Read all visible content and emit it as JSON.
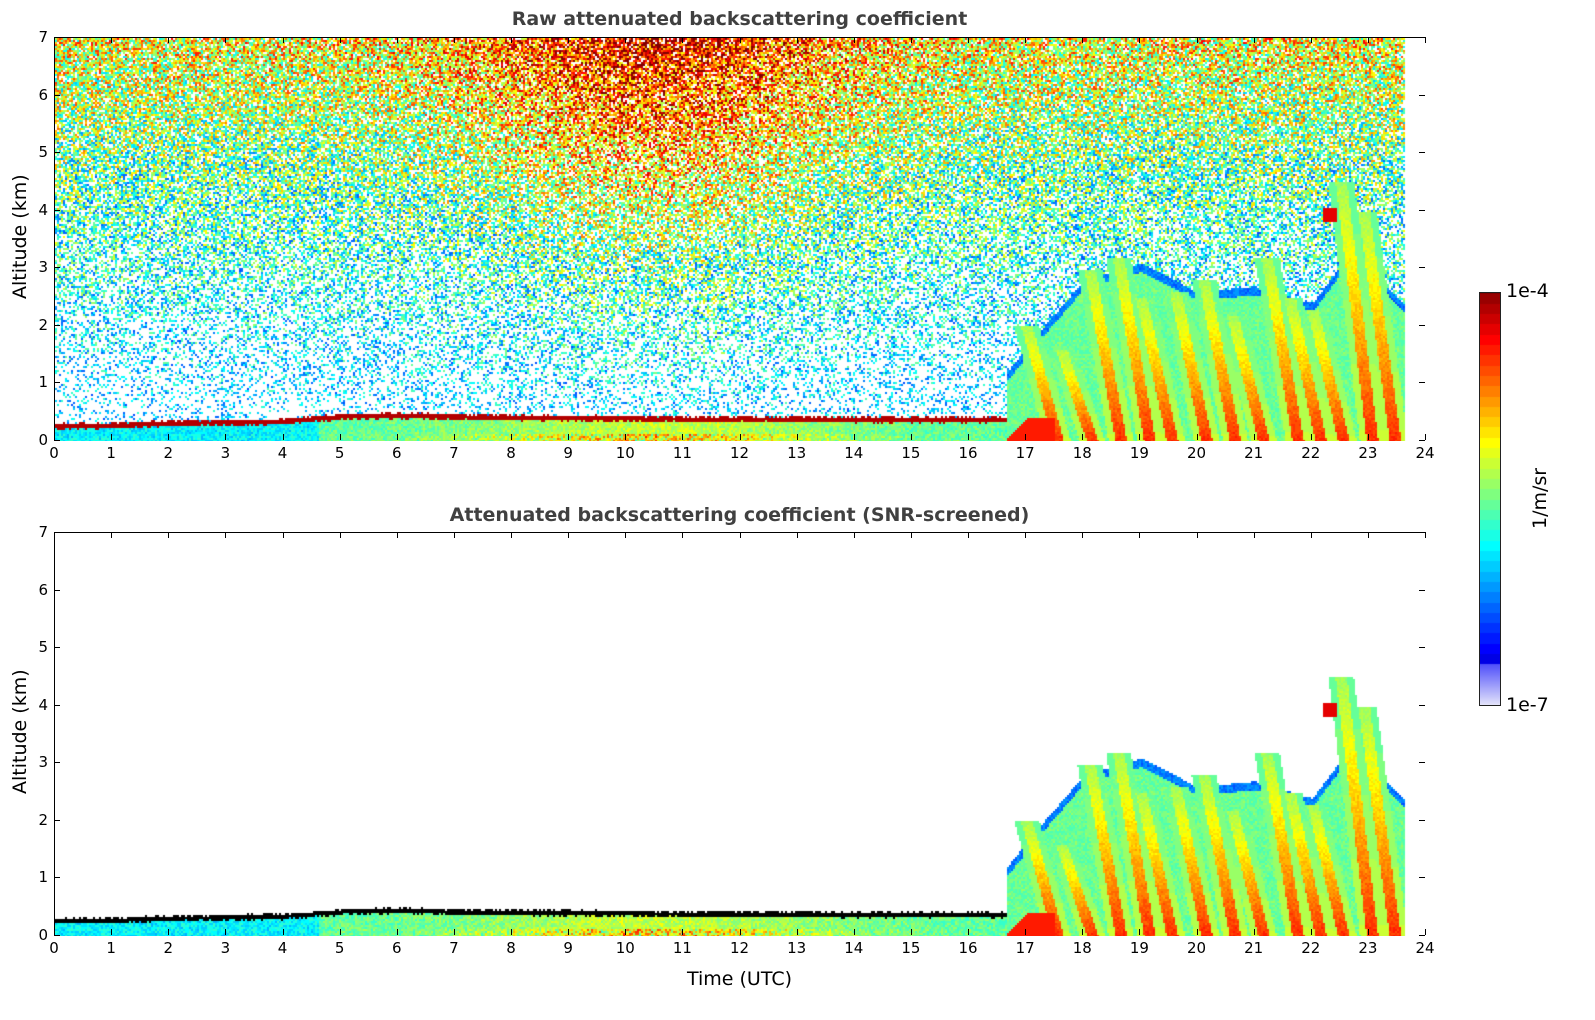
{
  "chart_data": [
    {
      "type": "heatmap",
      "title": "Raw attenuated backscattering coefficient",
      "xlabel": "",
      "ylabel": "Altitude (km)",
      "xlim": [
        0,
        24
      ],
      "ylim": [
        0,
        7
      ],
      "screened": false
    },
    {
      "type": "heatmap",
      "title": "Attenuated backscattering coefficient (SNR-screened)",
      "xlabel": "Time (UTC)",
      "ylabel": "Altitude (km)",
      "xlim": [
        0,
        24
      ],
      "ylim": [
        0,
        7
      ],
      "screened": true
    }
  ],
  "x_ticks": [
    "0",
    "1",
    "2",
    "3",
    "4",
    "5",
    "6",
    "7",
    "8",
    "9",
    "10",
    "11",
    "12",
    "13",
    "14",
    "15",
    "16",
    "17",
    "18",
    "19",
    "20",
    "21",
    "22",
    "23",
    "24"
  ],
  "y_ticks": [
    "0",
    "1",
    "2",
    "3",
    "4",
    "5",
    "6",
    "7"
  ],
  "colorbar": {
    "label": "1/m/sr",
    "min_label": "1e-7",
    "max_label": "1e-4",
    "scale": "log",
    "colormap": "jet"
  },
  "field": {
    "data_end_hour": 23.6,
    "layer_top_km_hourly": [
      0.32,
      0.33,
      0.37,
      0.38,
      0.4,
      0.48,
      0.5,
      0.48,
      0.47,
      0.46,
      0.45,
      0.44,
      0.44,
      0.44,
      0.43,
      0.43,
      0.43
    ],
    "convection_start_hour": 16.65,
    "convective_envelope": [
      [
        16.65,
        1.2
      ],
      [
        17.3,
        2.0
      ],
      [
        18,
        2.8
      ],
      [
        19,
        3.1
      ],
      [
        20,
        2.6
      ],
      [
        21,
        2.7
      ],
      [
        22,
        2.4
      ],
      [
        22.6,
        3.2
      ],
      [
        23,
        3.0
      ],
      [
        23.6,
        2.4
      ]
    ],
    "fall_streaks": [
      [
        17.0,
        2.0
      ],
      [
        17.6,
        1.6
      ],
      [
        18.1,
        3.0
      ],
      [
        18.6,
        3.2
      ],
      [
        19.0,
        2.5
      ],
      [
        19.6,
        2.6
      ],
      [
        20.1,
        2.8
      ],
      [
        20.6,
        2.2
      ],
      [
        21.2,
        3.2
      ],
      [
        21.6,
        2.5
      ],
      [
        22.0,
        2.3
      ],
      [
        22.5,
        4.5
      ],
      [
        22.9,
        4.0
      ]
    ],
    "cloud": {
      "hour": 22.3,
      "altitude_km": 3.95
    }
  }
}
